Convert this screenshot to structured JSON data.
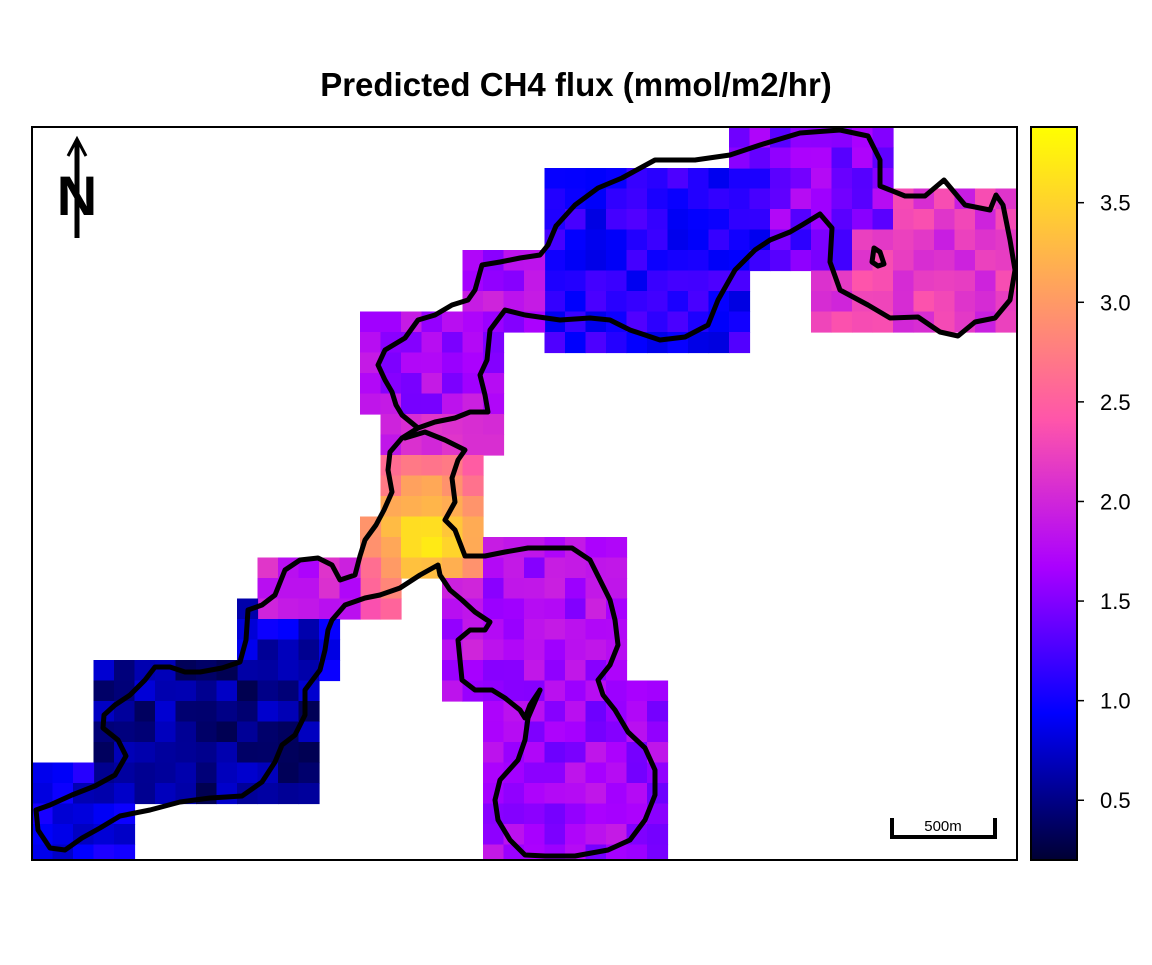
{
  "title": "Predicted CH4 flux (mmol/m2/hr)",
  "north_arrow_label": "N",
  "scale_bar_label": "500m",
  "legend": {
    "ticks": [
      "0.5",
      "1.0",
      "1.5",
      "2.0",
      "2.5",
      "3.0",
      "3.5"
    ],
    "tick_values": [
      0.5,
      1.0,
      1.5,
      2.0,
      2.5,
      3.0,
      3.5
    ],
    "min": 0.2,
    "max": 3.88,
    "palette": [
      "#000033",
      "#0000ff",
      "#aa00ff",
      "#ff55aa",
      "#ffaa55",
      "#ffff00"
    ]
  },
  "colors": {
    "outline": "#000000",
    "background": "#ffffff"
  }
}
